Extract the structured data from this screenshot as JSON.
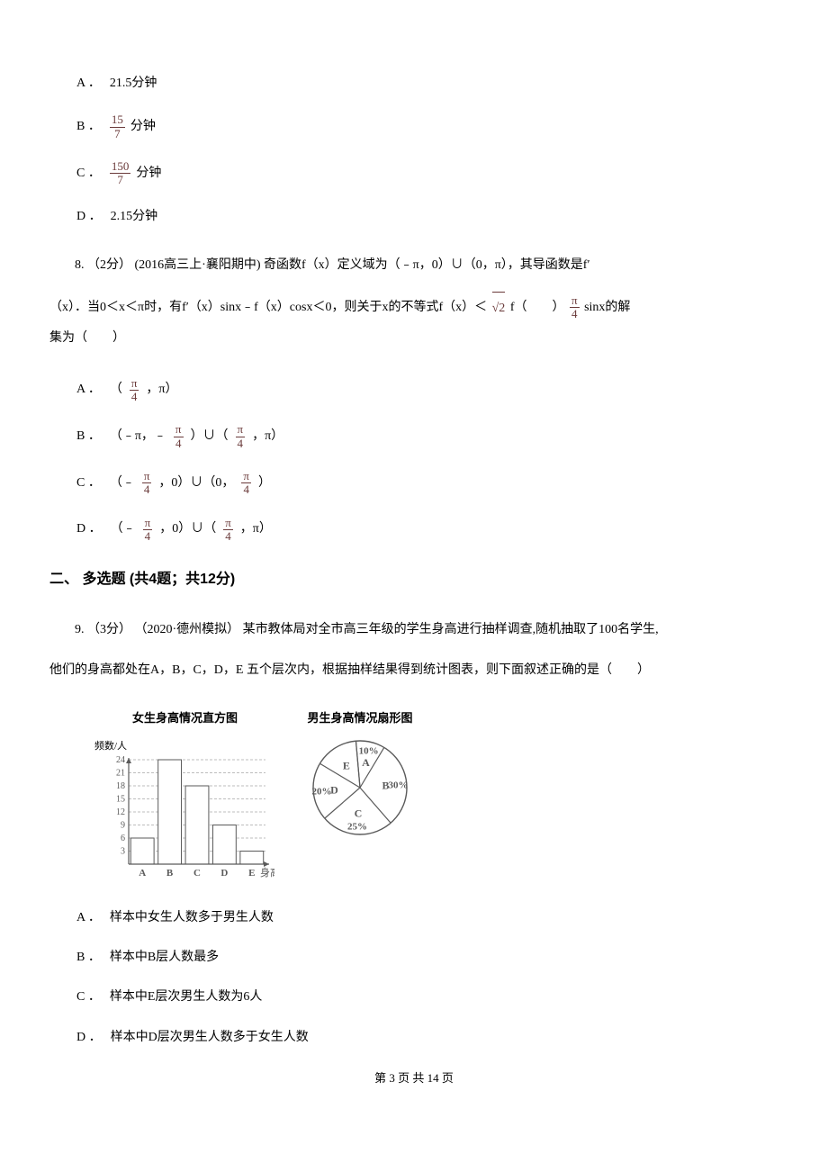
{
  "q7_options": {
    "a": {
      "label": "A ．",
      "text": "21.5分钟"
    },
    "b": {
      "label": "B ．",
      "frac_num": "15",
      "frac_den": "7",
      "suffix": "分钟"
    },
    "c": {
      "label": "C ．",
      "frac_num": "150",
      "frac_den": "7",
      "suffix": "分钟"
    },
    "d": {
      "label": "D ．",
      "text": "2.15分钟"
    }
  },
  "q8": {
    "stem_part1": "8. （2分） (2016高三上·襄阳期中) 奇函数f（x）定义域为（﹣π，0）∪（0，π），其导函数是f′",
    "stem_part2_pre": "（x）．当0＜x＜π时，有f′（x）sinx﹣f（x）cosx＜0，则关于x的不等式f（x）＜",
    "sqrt_glyph": "√2",
    "mid_f": " f（　　）",
    "frac_num": "π",
    "frac_den": "4",
    "stem_part2_post": " sinx的解",
    "stem_part3": "集为（　　）",
    "options": {
      "a": {
        "label": "A ．",
        "pre": "（ ",
        "frac_num": "π",
        "frac_den": "4",
        "post": " ，π）"
      },
      "b": {
        "label": "B ．",
        "pre": "（﹣π，﹣ ",
        "frac1_num": "π",
        "frac1_den": "4",
        "mid": " ）∪（ ",
        "frac2_num": "π",
        "frac2_den": "4",
        "post": " ，π）"
      },
      "c": {
        "label": "C ．",
        "pre": "（﹣ ",
        "frac1_num": "π",
        "frac1_den": "4",
        "mid": " ，0）∪（0， ",
        "frac2_num": "π",
        "frac2_den": "4",
        "post": " ）"
      },
      "d": {
        "label": "D ．",
        "pre": "（﹣ ",
        "frac1_num": "π",
        "frac1_den": "4",
        "mid": " ，0）∪（ ",
        "frac2_num": "π",
        "frac2_den": "4",
        "post": " ，π）"
      }
    }
  },
  "section2_heading": "二、 多选题 (共4题；共12分)",
  "q9": {
    "stem_line1": "9. （3分） （2020·德州模拟） 某市教体局对全市高三年级的学生身高进行抽样调查,随机抽取了100名学生,",
    "stem_line2": "他们的身高都处在A，B，C，D，E 五个层次内，根据抽样结果得到统计图表，则下面叙述正确的是（　　）",
    "hist": {
      "title": "女生身高情况直方图",
      "ylabel": "频数/人",
      "xlabel": "身高",
      "yticks": [
        "24",
        "21",
        "18",
        "15",
        "12",
        "9",
        "6",
        "3"
      ],
      "categories": [
        "A",
        "B",
        "C",
        "D",
        "E"
      ],
      "values": [
        6,
        24,
        18,
        9,
        3
      ],
      "bar_color": "#ffffff",
      "bar_border": "#5a5a5a",
      "axis_color": "#5a5a5a",
      "grid_color": "#bdbdbd",
      "width": 180,
      "height": 130
    },
    "pie": {
      "title": "男生身高情况扇形图",
      "slices": [
        {
          "label": "A",
          "pct": "10%",
          "value": 10
        },
        {
          "label": "B",
          "pct": "30%",
          "value": 30
        },
        {
          "label": "C",
          "pct": "25%",
          "value": 25
        },
        {
          "label": "D",
          "pct": "20%",
          "value": 20
        },
        {
          "label": "E",
          "pct": "",
          "value": 15
        }
      ],
      "fill": "#ffffff",
      "border": "#5a5a5a",
      "radius": 52
    },
    "options": {
      "a": {
        "label": "A ．",
        "text": "样本中女生人数多于男生人数"
      },
      "b": {
        "label": "B ．",
        "text": "样本中B层人数最多"
      },
      "c": {
        "label": "C ．",
        "text": "样本中E层次男生人数为6人"
      },
      "d": {
        "label": "D ．",
        "text": "样本中D层次男生人数多于女生人数"
      }
    }
  },
  "footer": "第 3 页 共 14 页"
}
